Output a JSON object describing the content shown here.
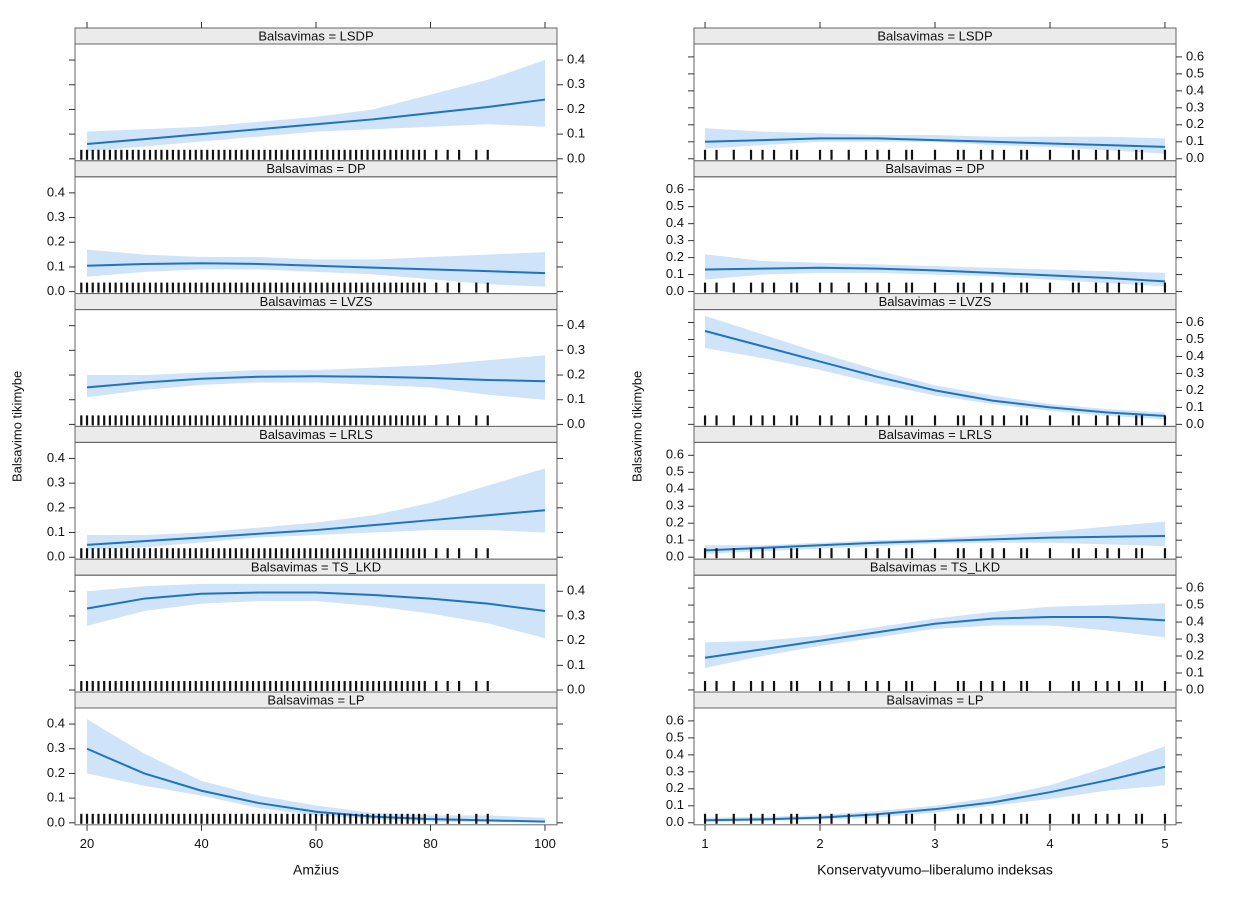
{
  "chart_data": [
    {
      "type": "line",
      "xlabel": "Amžius",
      "ylabel": "Balsavimo tikimybe",
      "xlim": [
        17.9,
        102.1
      ],
      "xticks": [
        20,
        40,
        60,
        80,
        100
      ],
      "ylim": [
        -0.008,
        0.465
      ],
      "yticks": [
        {
          "value": 0,
          "label": "0.0"
        },
        0.1,
        0.2,
        0.3,
        0.4
      ],
      "x": [
        20,
        30,
        40,
        50,
        60,
        70,
        80,
        90,
        100
      ],
      "color": "#1f74bd",
      "band_color": "#cfe3f9",
      "rug": [
        19,
        20,
        21,
        22,
        23,
        24,
        25,
        26,
        27,
        28,
        29,
        30,
        31,
        32,
        33,
        34,
        35,
        36,
        37,
        38,
        39,
        40,
        41,
        42,
        43,
        44,
        45,
        46,
        47,
        48,
        49,
        50,
        51,
        52,
        53,
        54,
        55,
        56,
        57,
        58,
        59,
        60,
        61,
        62,
        63,
        64,
        65,
        66,
        67,
        68,
        69,
        70,
        71,
        72,
        73,
        74,
        75,
        76,
        77,
        78,
        79,
        81,
        83,
        85,
        88,
        90
      ],
      "panels": [
        {
          "title": "Balsavimas = LSDP",
          "values": [
            0.06,
            0.08,
            0.1,
            0.12,
            0.14,
            0.16,
            0.185,
            0.21,
            0.24
          ],
          "lower": [
            0.03,
            0.05,
            0.07,
            0.09,
            0.11,
            0.12,
            0.13,
            0.14,
            0.13
          ],
          "upper": [
            0.11,
            0.12,
            0.13,
            0.15,
            0.17,
            0.2,
            0.26,
            0.32,
            0.4
          ]
        },
        {
          "title": "Balsavimas = DP",
          "values": [
            0.105,
            0.112,
            0.115,
            0.112,
            0.105,
            0.097,
            0.09,
            0.083,
            0.075
          ],
          "lower": [
            0.06,
            0.08,
            0.09,
            0.09,
            0.08,
            0.07,
            0.05,
            0.03,
            0.02
          ],
          "upper": [
            0.17,
            0.15,
            0.14,
            0.14,
            0.13,
            0.13,
            0.14,
            0.15,
            0.16
          ]
        },
        {
          "title": "Balsavimas = LVZS",
          "values": [
            0.15,
            0.17,
            0.185,
            0.193,
            0.195,
            0.193,
            0.188,
            0.18,
            0.175
          ],
          "lower": [
            0.11,
            0.14,
            0.16,
            0.17,
            0.17,
            0.16,
            0.15,
            0.12,
            0.1
          ],
          "upper": [
            0.2,
            0.2,
            0.21,
            0.22,
            0.22,
            0.23,
            0.24,
            0.26,
            0.28
          ]
        },
        {
          "title": "Balsavimas = LRLS",
          "values": [
            0.05,
            0.065,
            0.08,
            0.095,
            0.11,
            0.13,
            0.15,
            0.17,
            0.19
          ],
          "lower": [
            0.03,
            0.04,
            0.06,
            0.08,
            0.09,
            0.1,
            0.11,
            0.11,
            0.1
          ],
          "upper": [
            0.09,
            0.09,
            0.1,
            0.12,
            0.14,
            0.17,
            0.22,
            0.29,
            0.36
          ]
        },
        {
          "title": "Balsavimas = TS_LKD",
          "values": [
            0.33,
            0.37,
            0.39,
            0.395,
            0.395,
            0.385,
            0.37,
            0.35,
            0.32
          ],
          "lower": [
            0.26,
            0.32,
            0.35,
            0.36,
            0.36,
            0.34,
            0.31,
            0.27,
            0.21
          ],
          "upper": [
            0.4,
            0.42,
            0.43,
            0.43,
            0.43,
            0.43,
            0.43,
            0.43,
            0.43
          ]
        },
        {
          "title": "Balsavimas = LP",
          "values": [
            0.3,
            0.2,
            0.13,
            0.08,
            0.045,
            0.025,
            0.015,
            0.01,
            0.005
          ],
          "lower": [
            0.2,
            0.15,
            0.11,
            0.06,
            0.03,
            0.015,
            0.005,
            0.002,
            0.001
          ],
          "upper": [
            0.42,
            0.28,
            0.17,
            0.11,
            0.07,
            0.04,
            0.03,
            0.03,
            0.02
          ]
        }
      ]
    },
    {
      "type": "line",
      "xlabel": "Konservatyvumo–liberalumo indeksas",
      "ylabel": "Balsavimo tikimybe",
      "xlim": [
        0.904,
        5.096
      ],
      "xticks": [
        1,
        2,
        3,
        4,
        5
      ],
      "ylim": [
        -0.012,
        0.676
      ],
      "yticks": [
        {
          "value": 0,
          "label": "0.0"
        },
        0.1,
        0.2,
        0.3,
        0.4,
        0.5,
        0.6
      ],
      "x": [
        1,
        1.5,
        2,
        2.5,
        3,
        3.5,
        4,
        4.5,
        5
      ],
      "color": "#1f74bd",
      "band_color": "#cfe3f9",
      "rug": [
        1,
        1.1,
        1.25,
        1.4,
        1.5,
        1.6,
        1.75,
        1.8,
        2,
        2.1,
        2.25,
        2.4,
        2.5,
        2.6,
        2.75,
        2.8,
        3,
        3.2,
        3.25,
        3.4,
        3.5,
        3.6,
        3.75,
        3.8,
        4,
        4.2,
        4.25,
        4.4,
        4.5,
        4.6,
        4.75,
        4.8,
        5
      ],
      "panels": [
        {
          "title": "Balsavimas = LSDP",
          "values": [
            0.1,
            0.11,
            0.12,
            0.12,
            0.11,
            0.1,
            0.09,
            0.08,
            0.07
          ],
          "lower": [
            0.06,
            0.08,
            0.1,
            0.1,
            0.1,
            0.08,
            0.07,
            0.05,
            0.03
          ],
          "upper": [
            0.18,
            0.16,
            0.15,
            0.14,
            0.14,
            0.13,
            0.13,
            0.13,
            0.12
          ]
        },
        {
          "title": "Balsavimas = DP",
          "values": [
            0.13,
            0.135,
            0.14,
            0.135,
            0.125,
            0.11,
            0.095,
            0.08,
            0.06
          ],
          "lower": [
            0.07,
            0.1,
            0.11,
            0.11,
            0.1,
            0.09,
            0.07,
            0.05,
            0.03
          ],
          "upper": [
            0.22,
            0.18,
            0.17,
            0.16,
            0.15,
            0.14,
            0.13,
            0.12,
            0.11
          ]
        },
        {
          "title": "Balsavimas = LVZS",
          "values": [
            0.55,
            0.46,
            0.37,
            0.28,
            0.2,
            0.14,
            0.1,
            0.07,
            0.05
          ],
          "lower": [
            0.45,
            0.39,
            0.32,
            0.24,
            0.17,
            0.12,
            0.08,
            0.05,
            0.03
          ],
          "upper": [
            0.64,
            0.53,
            0.42,
            0.32,
            0.23,
            0.17,
            0.12,
            0.09,
            0.07
          ]
        },
        {
          "title": "Balsavimas = LRLS",
          "values": [
            0.04,
            0.055,
            0.07,
            0.085,
            0.095,
            0.105,
            0.115,
            0.12,
            0.125
          ],
          "lower": [
            0.02,
            0.035,
            0.05,
            0.065,
            0.08,
            0.085,
            0.085,
            0.075,
            0.065
          ],
          "upper": [
            0.07,
            0.07,
            0.085,
            0.1,
            0.11,
            0.13,
            0.15,
            0.18,
            0.21
          ]
        },
        {
          "title": "Balsavimas = TS_LKD",
          "values": [
            0.19,
            0.24,
            0.29,
            0.34,
            0.39,
            0.42,
            0.43,
            0.43,
            0.41
          ],
          "lower": [
            0.13,
            0.2,
            0.26,
            0.31,
            0.36,
            0.38,
            0.38,
            0.35,
            0.31
          ],
          "upper": [
            0.28,
            0.29,
            0.32,
            0.37,
            0.42,
            0.46,
            0.49,
            0.5,
            0.51
          ]
        },
        {
          "title": "Balsavimas = LP",
          "values": [
            0.015,
            0.02,
            0.03,
            0.05,
            0.08,
            0.12,
            0.18,
            0.25,
            0.33
          ],
          "lower": [
            0.005,
            0.01,
            0.02,
            0.03,
            0.06,
            0.1,
            0.14,
            0.19,
            0.22
          ],
          "upper": [
            0.03,
            0.035,
            0.045,
            0.07,
            0.1,
            0.15,
            0.22,
            0.33,
            0.45
          ]
        }
      ]
    }
  ]
}
